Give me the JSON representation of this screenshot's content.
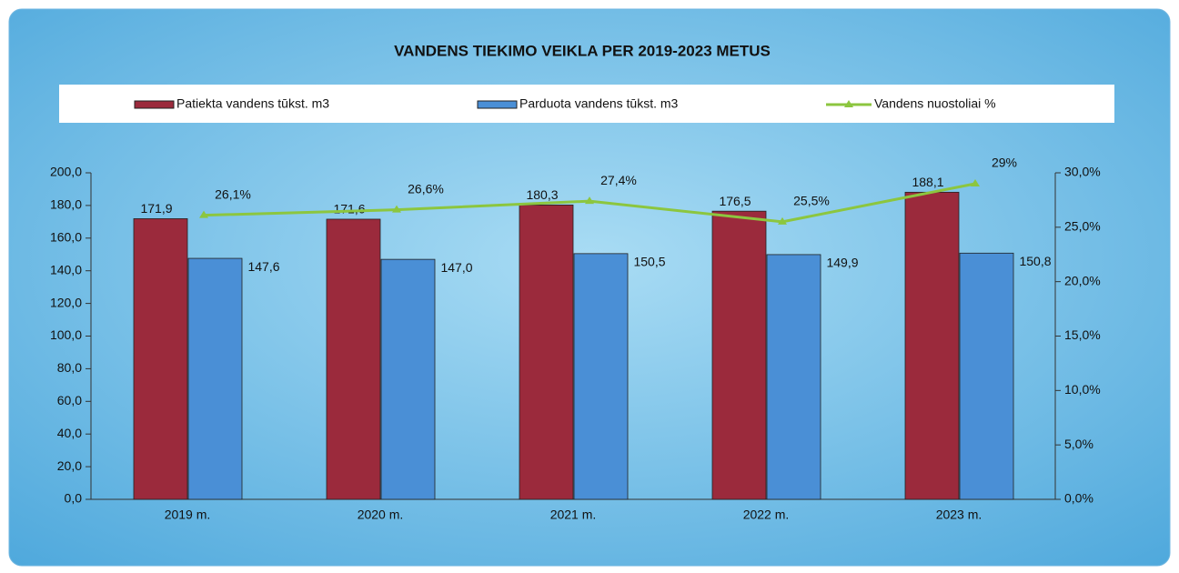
{
  "chart_data": {
    "type": "bar",
    "title": "VANDENS TIEKIMO VEIKLA PER 2019-2023 METUS",
    "categories": [
      "2019 m.",
      "2020 m.",
      "2021 m.",
      "2022 m.",
      "2023 m."
    ],
    "series": [
      {
        "name": "Patiekta  vandens tūkst. m3",
        "color": "#9b2a3c",
        "values": [
          171.9,
          171.6,
          180.3,
          176.5,
          188.1
        ],
        "value_labels": [
          "171,9",
          "171,6",
          "180,3",
          "176,5",
          "188,1"
        ]
      },
      {
        "name": "Parduota vandens tūkst. m3",
        "color": "#4a8fd6",
        "values": [
          147.6,
          147.0,
          150.5,
          149.9,
          150.8
        ],
        "value_labels": [
          "147,6",
          "147,0",
          "150,5",
          "149,9",
          "150,8"
        ]
      },
      {
        "name": "Vandens nuostoliai %",
        "color": "#8cc63f",
        "type": "line",
        "axis": "y2",
        "values": [
          26.1,
          26.6,
          27.4,
          25.5,
          29
        ],
        "value_labels": [
          "26,1%",
          "26,6%",
          "27,4%",
          "25,5%",
          "29%"
        ]
      }
    ],
    "ylim": [
      0,
      200
    ],
    "yticks": [
      {
        "value": 0,
        "label": "0,0"
      },
      {
        "value": 20,
        "label": "20,0"
      },
      {
        "value": 40,
        "label": "40,0"
      },
      {
        "value": 60,
        "label": "60,0"
      },
      {
        "value": 80,
        "label": "80,0"
      },
      {
        "value": 100,
        "label": "100,0"
      },
      {
        "value": 120,
        "label": "120,0"
      },
      {
        "value": 140,
        "label": "140,0"
      },
      {
        "value": 160,
        "label": "160,0"
      },
      {
        "value": 180,
        "label": "180,0"
      },
      {
        "value": 200,
        "label": "200,0"
      }
    ],
    "y2lim": [
      0,
      30
    ],
    "y2ticks": [
      {
        "value": 0,
        "label": "0,0%"
      },
      {
        "value": 5,
        "label": "5,0%"
      },
      {
        "value": 10,
        "label": "10,0%"
      },
      {
        "value": 15,
        "label": "15,0%"
      },
      {
        "value": 20,
        "label": "20,0%"
      },
      {
        "value": 25,
        "label": "25,0%"
      },
      {
        "value": 30,
        "label": "30,0%"
      }
    ],
    "legend": "top"
  }
}
